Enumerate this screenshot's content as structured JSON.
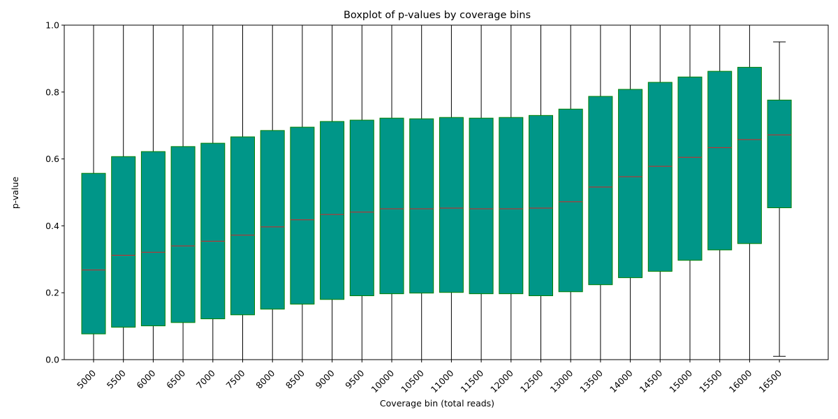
{
  "chart_data": {
    "type": "boxplot",
    "title": "Boxplot of p-values by coverage bins",
    "xlabel": "Coverage bin (total reads)",
    "ylabel": "p-value",
    "ylim": [
      0,
      1
    ],
    "yticks": [
      "0.0",
      "0.2",
      "0.4",
      "0.6",
      "0.8",
      "1.0"
    ],
    "grid": false,
    "colors": {
      "box_fill": "#009688",
      "box_edge": "#008000",
      "median": "#d62728",
      "whisker": "#000000"
    },
    "categories": [
      "5000",
      "5500",
      "6000",
      "6500",
      "7000",
      "7500",
      "8000",
      "8500",
      "9000",
      "9500",
      "10000",
      "10500",
      "11000",
      "11500",
      "12000",
      "12500",
      "13000",
      "13500",
      "14000",
      "14500",
      "15000",
      "15500",
      "16000",
      "16500"
    ],
    "boxes": [
      {
        "whislo": 0.0,
        "q1": 0.077,
        "med": 0.268,
        "q3": 0.557,
        "whishi": 1.0
      },
      {
        "whislo": 0.0,
        "q1": 0.097,
        "med": 0.312,
        "q3": 0.607,
        "whishi": 1.0
      },
      {
        "whislo": 0.0,
        "q1": 0.101,
        "med": 0.321,
        "q3": 0.622,
        "whishi": 1.0
      },
      {
        "whislo": 0.0,
        "q1": 0.111,
        "med": 0.34,
        "q3": 0.637,
        "whishi": 1.0
      },
      {
        "whislo": 0.0,
        "q1": 0.122,
        "med": 0.354,
        "q3": 0.647,
        "whishi": 1.0
      },
      {
        "whislo": 0.0,
        "q1": 0.134,
        "med": 0.372,
        "q3": 0.666,
        "whishi": 1.0
      },
      {
        "whislo": 0.0,
        "q1": 0.151,
        "med": 0.397,
        "q3": 0.685,
        "whishi": 1.0
      },
      {
        "whislo": 0.0,
        "q1": 0.166,
        "med": 0.418,
        "q3": 0.695,
        "whishi": 1.0
      },
      {
        "whislo": 0.0,
        "q1": 0.18,
        "med": 0.434,
        "q3": 0.712,
        "whishi": 1.0
      },
      {
        "whislo": 0.0,
        "q1": 0.191,
        "med": 0.441,
        "q3": 0.716,
        "whishi": 1.0
      },
      {
        "whislo": 0.0,
        "q1": 0.197,
        "med": 0.451,
        "q3": 0.722,
        "whishi": 1.0
      },
      {
        "whislo": 0.0,
        "q1": 0.199,
        "med": 0.451,
        "q3": 0.72,
        "whishi": 1.0
      },
      {
        "whislo": 0.0,
        "q1": 0.201,
        "med": 0.453,
        "q3": 0.724,
        "whishi": 1.0
      },
      {
        "whislo": 0.0,
        "q1": 0.197,
        "med": 0.451,
        "q3": 0.722,
        "whishi": 1.0
      },
      {
        "whislo": 0.0,
        "q1": 0.197,
        "med": 0.451,
        "q3": 0.724,
        "whishi": 1.0
      },
      {
        "whislo": 0.0,
        "q1": 0.191,
        "med": 0.453,
        "q3": 0.73,
        "whishi": 1.0
      },
      {
        "whislo": 0.0,
        "q1": 0.203,
        "med": 0.472,
        "q3": 0.749,
        "whishi": 1.0
      },
      {
        "whislo": 0.0,
        "q1": 0.224,
        "med": 0.516,
        "q3": 0.787,
        "whishi": 1.0
      },
      {
        "whislo": 0.0,
        "q1": 0.245,
        "med": 0.547,
        "q3": 0.808,
        "whishi": 1.0
      },
      {
        "whislo": 0.0,
        "q1": 0.264,
        "med": 0.578,
        "q3": 0.829,
        "whishi": 1.0
      },
      {
        "whislo": 0.0,
        "q1": 0.297,
        "med": 0.605,
        "q3": 0.845,
        "whishi": 1.0
      },
      {
        "whislo": 0.0,
        "q1": 0.328,
        "med": 0.634,
        "q3": 0.862,
        "whishi": 1.0
      },
      {
        "whislo": 0.0,
        "q1": 0.347,
        "med": 0.658,
        "q3": 0.874,
        "whishi": 1.0
      },
      {
        "whislo": 0.01,
        "q1": 0.454,
        "med": 0.672,
        "q3": 0.776,
        "whishi": 0.95
      }
    ]
  }
}
